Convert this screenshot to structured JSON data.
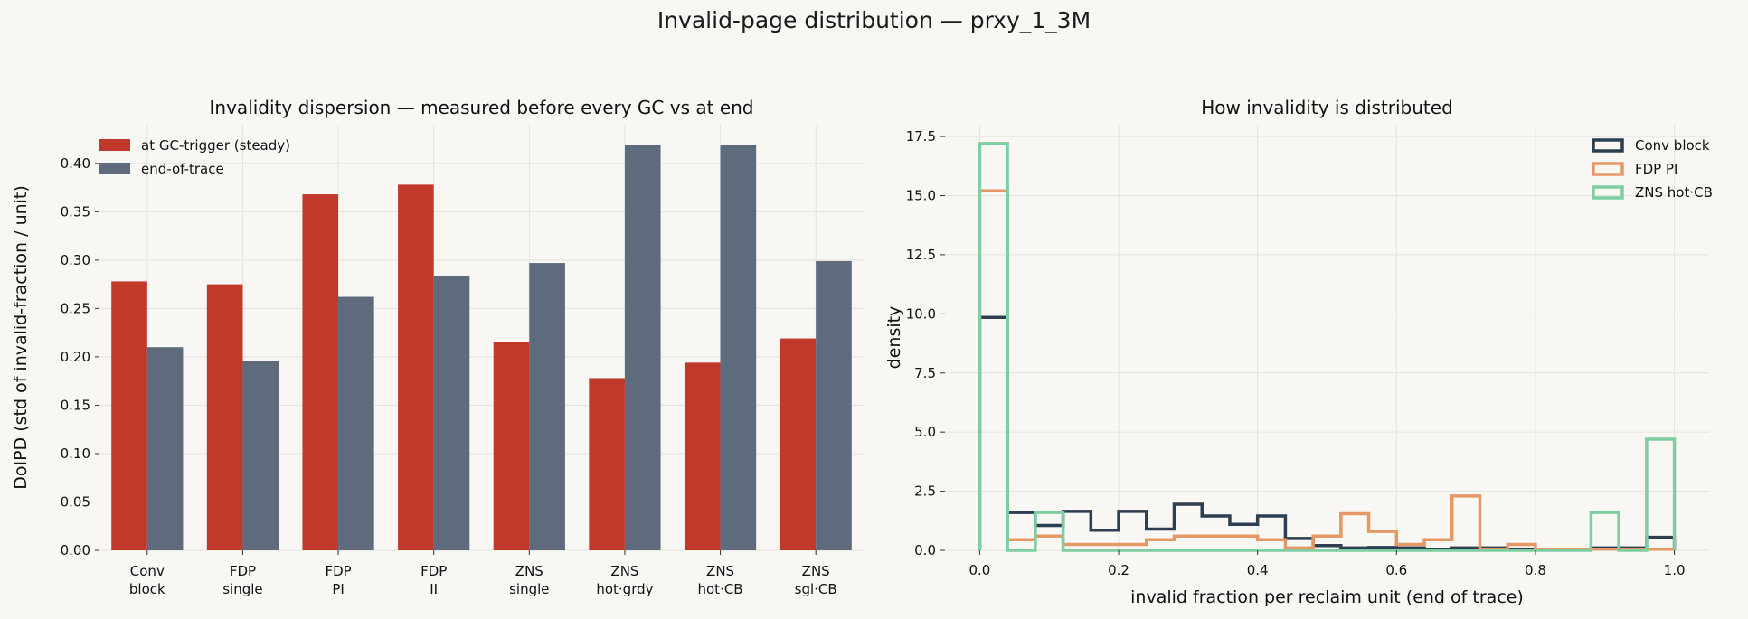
{
  "suptitle": "Invalid-page distribution — prxy_1_3M",
  "colors": {
    "background": "#f8f7f4",
    "grid": "#e4e2dc",
    "gc_trigger": "#c0392b",
    "end_of_trace": "#5d6b7c",
    "conv_block": "#2c3e50",
    "fdp_pi": "#e59866",
    "zns_hot_cb": "#7dcea0"
  },
  "chart_data": [
    {
      "type": "bar",
      "title": "Invalidity dispersion — measured before every GC vs at end",
      "xlabel": "",
      "ylabel": "DoIPD  (std of invalid-fraction / unit)",
      "ylim": [
        0,
        0.44
      ],
      "yticks": [
        0,
        0.05,
        0.1,
        0.15,
        0.2,
        0.25,
        0.3,
        0.35,
        0.4
      ],
      "ytick_labels": [
        "0.00",
        "0.05",
        "0.10",
        "0.15",
        "0.20",
        "0.25",
        "0.30",
        "0.35",
        "0.40"
      ],
      "grid": true,
      "legend_position": "top-left",
      "categories": [
        [
          "Conv",
          "block"
        ],
        [
          "FDP",
          "single"
        ],
        [
          "FDP",
          "PI"
        ],
        [
          "FDP",
          "II"
        ],
        [
          "ZNS",
          "single"
        ],
        [
          "ZNS",
          "hot·grdy"
        ],
        [
          "ZNS",
          "hot·CB"
        ],
        [
          "ZNS",
          "sgl·CB"
        ]
      ],
      "series": [
        {
          "name": "at GC-trigger (steady)",
          "color": "#c0392b",
          "values": [
            0.278,
            0.275,
            0.368,
            0.378,
            0.215,
            0.178,
            0.194,
            0.219
          ]
        },
        {
          "name": "end-of-trace",
          "color": "#5d6b7c",
          "values": [
            0.21,
            0.196,
            0.262,
            0.284,
            0.297,
            0.419,
            0.419,
            0.299
          ]
        }
      ]
    },
    {
      "type": "step-histogram",
      "title": "How invalidity is distributed",
      "xlabel": "invalid fraction per reclaim unit (end of trace)",
      "ylabel": "density",
      "xlim": [
        -0.05,
        1.05
      ],
      "ylim": [
        0,
        18.0
      ],
      "xticks": [
        0.0,
        0.2,
        0.4,
        0.6,
        0.8,
        1.0
      ],
      "xtick_labels": [
        "0.0",
        "0.2",
        "0.4",
        "0.6",
        "0.8",
        "1.0"
      ],
      "yticks": [
        0,
        2.5,
        5.0,
        7.5,
        10.0,
        12.5,
        15.0,
        17.5
      ],
      "ytick_labels": [
        "0.0",
        "2.5",
        "5.0",
        "7.5",
        "10.0",
        "12.5",
        "15.0",
        "17.5"
      ],
      "grid": true,
      "legend_position": "top-right",
      "bin_edges": [
        0,
        0.04,
        0.08,
        0.12,
        0.16,
        0.2,
        0.24,
        0.28,
        0.32,
        0.36,
        0.4,
        0.44,
        0.48,
        0.52,
        0.56,
        0.6,
        0.64,
        0.68,
        0.72,
        0.76,
        0.8,
        0.84,
        0.88,
        0.92,
        0.96,
        1.0
      ],
      "series": [
        {
          "name": "Conv block",
          "color": "#2c3e50",
          "density": [
            9.85,
            1.6,
            1.05,
            1.65,
            0.85,
            1.65,
            0.9,
            1.95,
            1.45,
            1.1,
            1.45,
            0.5,
            0.2,
            0.1,
            0.12,
            0.1,
            0.05,
            0.1,
            0.1,
            0.05,
            0.05,
            0.05,
            0.1,
            0.1,
            0.55
          ]
        },
        {
          "name": "FDP PI",
          "color": "#e59866",
          "density": [
            15.2,
            0.45,
            0.6,
            0.25,
            0.25,
            0.25,
            0.45,
            0.6,
            0.6,
            0.6,
            0.45,
            0.1,
            0.6,
            1.55,
            0.8,
            0.25,
            0.45,
            2.3,
            0.05,
            0.25,
            0.05,
            0.05,
            0.05,
            0.05,
            0.05
          ]
        },
        {
          "name": "ZNS hot·CB",
          "color": "#7dcea0",
          "density": [
            17.2,
            0,
            1.6,
            0,
            0,
            0,
            0,
            0,
            0,
            0,
            0,
            0,
            0,
            0,
            0,
            0,
            0,
            0,
            0,
            0,
            0,
            0,
            1.6,
            0,
            4.7
          ]
        }
      ]
    }
  ]
}
